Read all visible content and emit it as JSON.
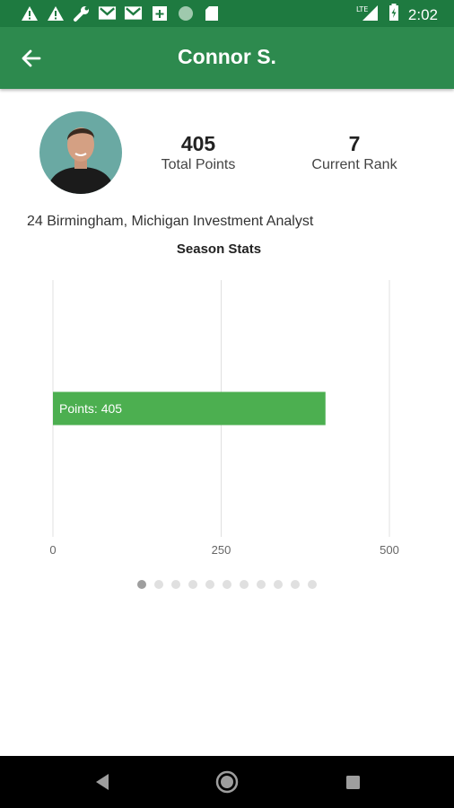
{
  "status_bar": {
    "time": "2:02",
    "network_label": "LTE",
    "left_icons": [
      "warning-icon",
      "warning-icon",
      "wrench-icon",
      "gmail-icon",
      "gmail-icon",
      "calendar-plus-icon",
      "circle-icon",
      "sd-card-icon"
    ]
  },
  "app_bar": {
    "title": "Connor S.",
    "background": "#2d8a4e"
  },
  "profile": {
    "total_points_value": "405",
    "total_points_label": "Total Points",
    "rank_value": "7",
    "rank_label": "Current Rank",
    "bio": "24 Birmingham, Michigan Investment Analyst"
  },
  "season_stats_title": "Season Stats",
  "chart_data": {
    "type": "bar",
    "orientation": "horizontal",
    "title": "Season Stats",
    "categories": [
      ""
    ],
    "series": [
      {
        "values": [
          405
        ],
        "color": "#4caf50"
      }
    ],
    "data_labels": [
      "Points: 405"
    ],
    "xlim": [
      0,
      500
    ],
    "x_ticks": [
      "0",
      "250",
      "500"
    ],
    "grid": true
  },
  "pager": {
    "count": 11,
    "active_index": 0
  },
  "colors": {
    "status_bar": "#1e7a40",
    "bar": "#4caf50",
    "grid": "#e0e0e0"
  }
}
